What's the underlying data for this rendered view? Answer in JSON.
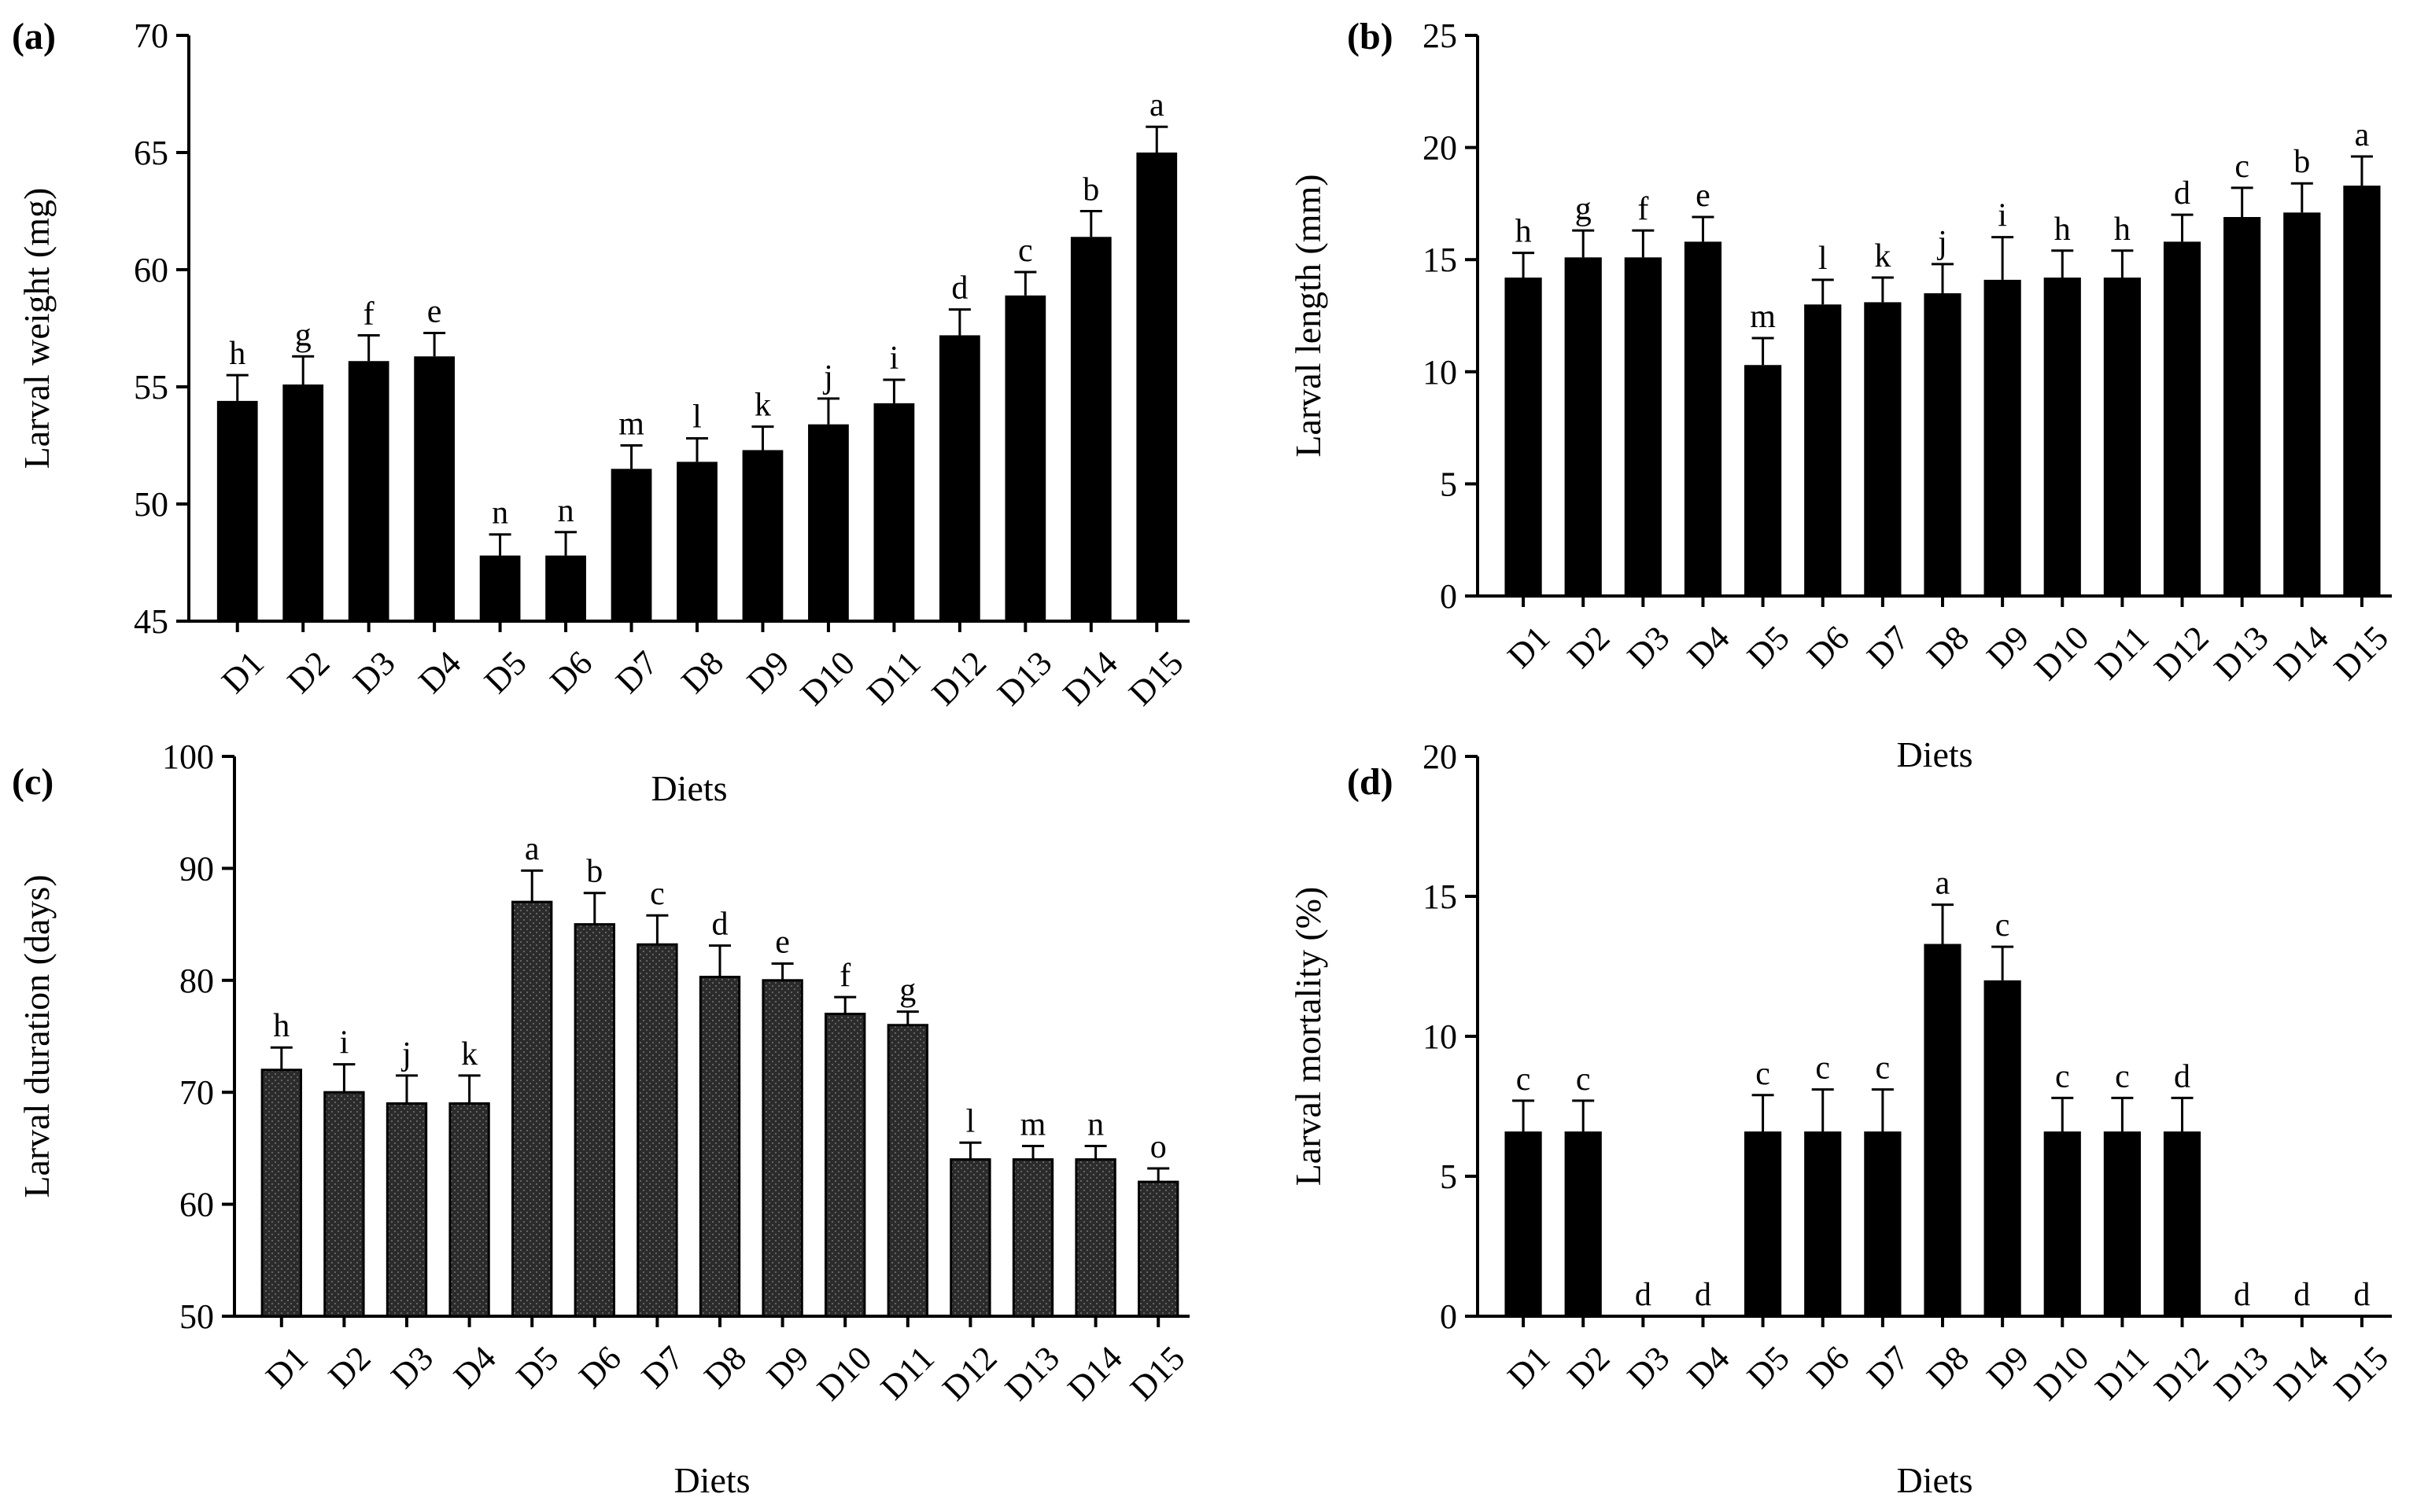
{
  "chart_data": [
    {
      "type": "bar",
      "panel": "(a)",
      "xlabel": "Diets",
      "ylabel": "Larval weight (mg)",
      "ylim": [
        45,
        70
      ],
      "yticks": [
        45,
        50,
        55,
        60,
        65,
        70
      ],
      "categories": [
        "D1",
        "D2",
        "D3",
        "D4",
        "D5",
        "D6",
        "D7",
        "D8",
        "D9",
        "D10",
        "D11",
        "D12",
        "D13",
        "D14",
        "D15"
      ],
      "values": [
        54.4,
        55.1,
        56.1,
        56.3,
        47.8,
        47.8,
        51.5,
        51.8,
        52.3,
        53.4,
        54.3,
        57.2,
        58.9,
        61.4,
        65.0
      ],
      "errors": [
        1.1,
        1.2,
        1.1,
        1.0,
        0.9,
        1.0,
        1.0,
        1.0,
        1.0,
        1.1,
        1.0,
        1.1,
        1.0,
        1.1,
        1.1
      ],
      "letters": [
        "h",
        "g",
        "f",
        "e",
        "n",
        "n",
        "m",
        "l",
        "k",
        "j",
        "i",
        "d",
        "c",
        "b",
        "a"
      ],
      "fill": "solid"
    },
    {
      "type": "bar",
      "panel": "(b)",
      "xlabel": "Diets",
      "ylabel": "Larval length (mm)",
      "ylim": [
        0,
        25
      ],
      "yticks": [
        0,
        5,
        10,
        15,
        20,
        25
      ],
      "categories": [
        "D1",
        "D2",
        "D3",
        "D4",
        "D5",
        "D6",
        "D7",
        "D8",
        "D9",
        "D10",
        "D11",
        "D12",
        "D13",
        "D14",
        "D15"
      ],
      "values": [
        14.2,
        15.1,
        15.1,
        15.8,
        10.3,
        13.0,
        13.1,
        13.5,
        14.1,
        14.2,
        14.2,
        15.8,
        16.9,
        17.1,
        18.3
      ],
      "errors": [
        1.1,
        1.2,
        1.2,
        1.1,
        1.2,
        1.1,
        1.1,
        1.3,
        1.9,
        1.2,
        1.2,
        1.2,
        1.3,
        1.3,
        1.3
      ],
      "letters": [
        "h",
        "g",
        "f",
        "e",
        "m",
        "l",
        "k",
        "j",
        "i",
        "h",
        "h",
        "d",
        "c",
        "b",
        "a"
      ],
      "fill": "solid"
    },
    {
      "type": "bar",
      "panel": "(c)",
      "xlabel": "Diets",
      "ylabel": "Larval duration (days)",
      "ylim": [
        50,
        100
      ],
      "yticks": [
        50,
        60,
        70,
        80,
        90,
        100
      ],
      "categories": [
        "D1",
        "D2",
        "D3",
        "D4",
        "D5",
        "D6",
        "D7",
        "D8",
        "D9",
        "D10",
        "D11",
        "D12",
        "D13",
        "D14",
        "D15"
      ],
      "values": [
        72,
        70,
        69,
        69,
        87,
        85,
        83.2,
        80.3,
        80,
        77,
        76,
        64,
        64,
        64,
        62
      ],
      "errors": [
        2.0,
        2.5,
        2.5,
        2.5,
        2.8,
        2.8,
        2.6,
        2.8,
        1.5,
        1.5,
        1.2,
        1.5,
        1.2,
        1.2,
        1.2
      ],
      "letters": [
        "h",
        "i",
        "j",
        "k",
        "a",
        "b",
        "c",
        "d",
        "e",
        "f",
        "g",
        "l",
        "m",
        "n",
        "o"
      ],
      "fill": "dotted"
    },
    {
      "type": "bar",
      "panel": "(d)",
      "xlabel": "Diets",
      "ylabel": "Larval mortality (%)",
      "ylim": [
        0,
        20
      ],
      "yticks": [
        0,
        5,
        10,
        15,
        20
      ],
      "categories": [
        "D1",
        "D2",
        "D3",
        "D4",
        "D5",
        "D6",
        "D7",
        "D8",
        "D9",
        "D10",
        "D11",
        "D12",
        "D13",
        "D14",
        "D15"
      ],
      "values": [
        6.6,
        6.6,
        0,
        0,
        6.6,
        6.6,
        6.6,
        13.3,
        12.0,
        6.6,
        6.6,
        6.6,
        0,
        0,
        0
      ],
      "errors": [
        1.1,
        1.1,
        0,
        0,
        1.3,
        1.5,
        1.5,
        1.4,
        1.2,
        1.2,
        1.2,
        1.2,
        0,
        0,
        0
      ],
      "letters": [
        "c",
        "c",
        "d",
        "d",
        "c",
        "c",
        "c",
        "a",
        "c",
        "c",
        "c",
        "d",
        "d",
        "d",
        "d"
      ],
      "fill": "solid"
    }
  ]
}
